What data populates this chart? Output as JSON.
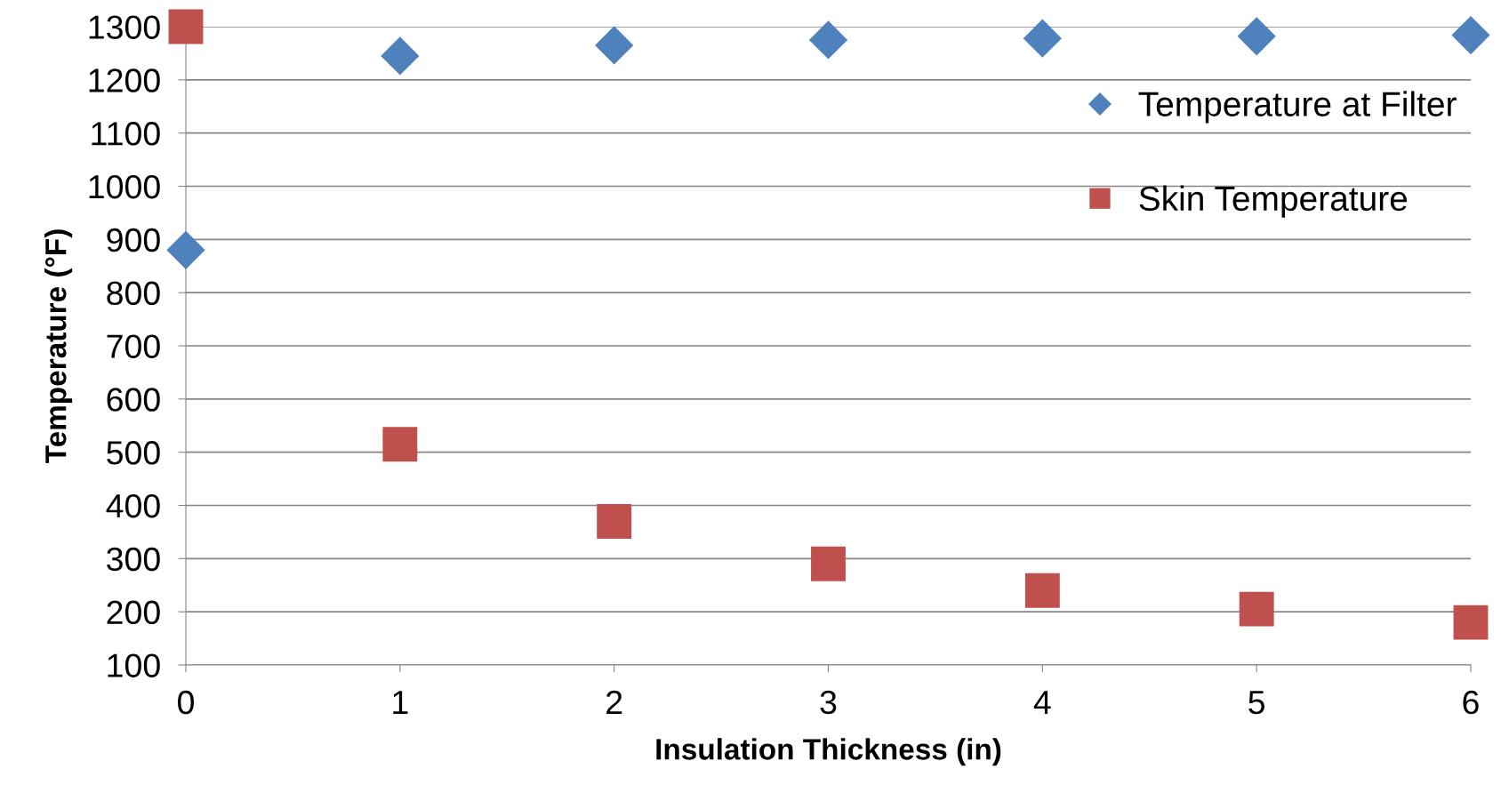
{
  "chart_data": {
    "type": "scatter",
    "xlabel": "Insulation Thickness (in)",
    "ylabel": "Temperature (°F)",
    "x": [
      0,
      1,
      2,
      3,
      4,
      5,
      6
    ],
    "series": [
      {
        "name": "Temperature at Filter",
        "color": "#4f81bd",
        "marker": "diamond",
        "values": [
          880,
          1245,
          1265,
          1275,
          1278,
          1282,
          1284
        ]
      },
      {
        "name": "Skin Temperature",
        "color": "#c0504d",
        "marker": "square",
        "values": [
          1300,
          515,
          370,
          290,
          240,
          205,
          180
        ]
      }
    ],
    "xlim": [
      0,
      6
    ],
    "xticks": [
      0,
      1,
      2,
      3,
      4,
      5,
      6
    ],
    "ylim": [
      100,
      1300
    ],
    "yticks": [
      100,
      200,
      300,
      400,
      500,
      600,
      700,
      800,
      900,
      1000,
      1100,
      1200,
      1300
    ],
    "grid": "y",
    "legend": "right"
  }
}
